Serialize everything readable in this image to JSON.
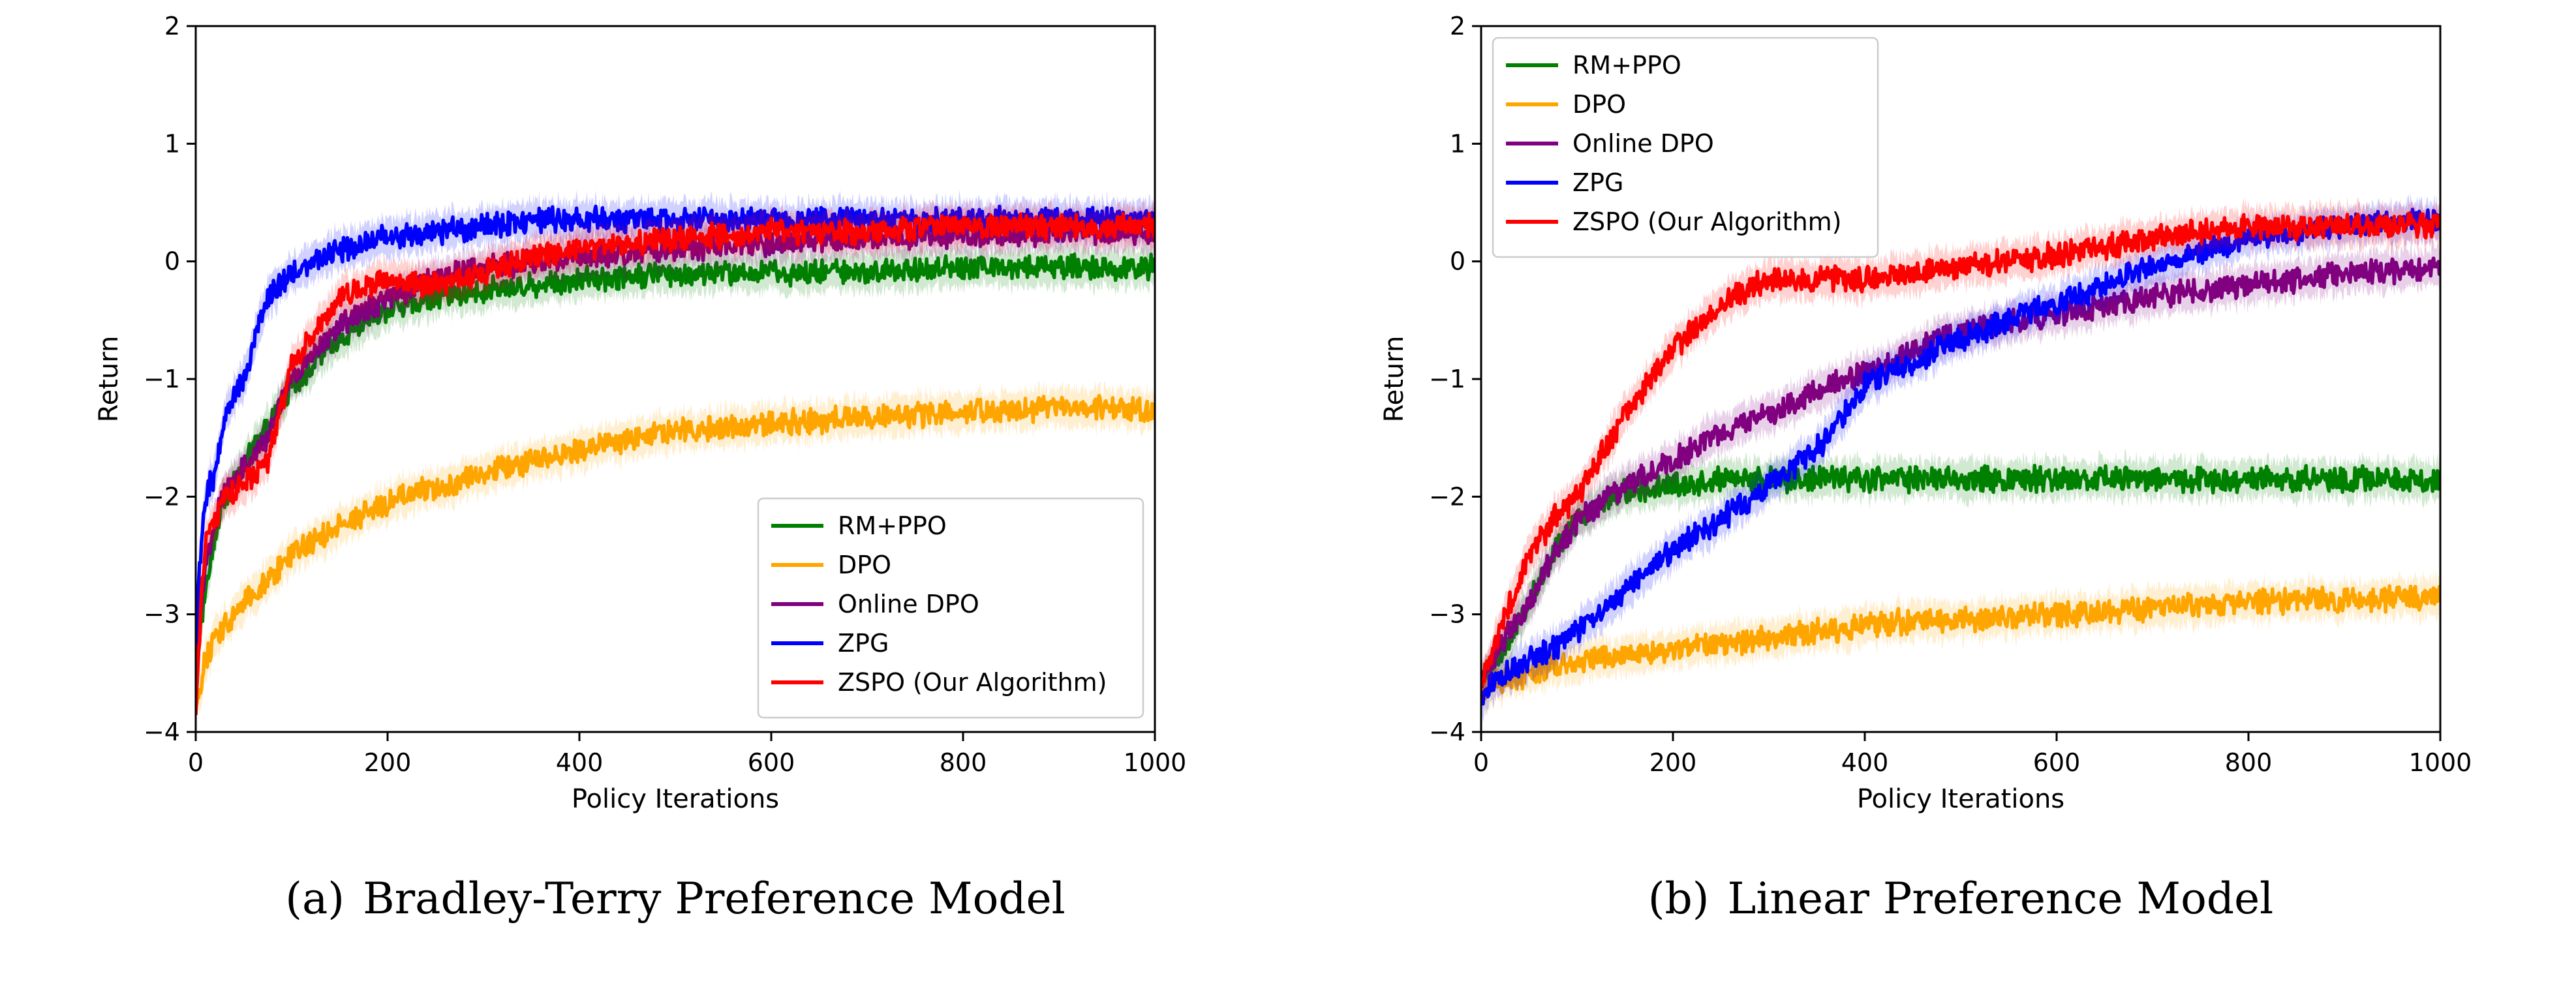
{
  "chart_data": [
    {
      "type": "line",
      "caption_tag": "(a)",
      "caption": "Bradley-Terry Preference Model",
      "xlabel": "Policy Iterations",
      "ylabel": "Return",
      "xlim": [
        0,
        1000
      ],
      "ylim": [
        -4,
        2
      ],
      "xticks": [
        0,
        200,
        400,
        600,
        800,
        1000
      ],
      "yticks": [
        -4,
        -3,
        -2,
        -1,
        0,
        1,
        2
      ],
      "xtick_labels": [
        "0",
        "200",
        "400",
        "600",
        "800",
        "1000"
      ],
      "ytick_labels": [
        "−4",
        "−3",
        "−2",
        "−1",
        "0",
        "1",
        "2"
      ],
      "grid": false,
      "legend_position": "lower-right",
      "x": [
        0,
        5,
        10,
        20,
        30,
        50,
        75,
        100,
        150,
        200,
        250,
        300,
        350,
        400,
        500,
        600,
        700,
        800,
        900,
        1000
      ],
      "series": [
        {
          "name": "RM+PPO",
          "color": "#008000",
          "values": [
            -3.3,
            -3.1,
            -2.8,
            -2.3,
            -2.0,
            -1.75,
            -1.4,
            -1.05,
            -0.65,
            -0.4,
            -0.3,
            -0.25,
            -0.2,
            -0.15,
            -0.1,
            -0.1,
            -0.08,
            -0.05,
            -0.05,
            -0.05
          ]
        },
        {
          "name": "DPO",
          "color": "#FFA500",
          "values": [
            -3.8,
            -3.6,
            -3.4,
            -3.2,
            -3.1,
            -2.9,
            -2.7,
            -2.5,
            -2.25,
            -2.05,
            -1.92,
            -1.8,
            -1.7,
            -1.6,
            -1.45,
            -1.38,
            -1.32,
            -1.28,
            -1.25,
            -1.25
          ]
        },
        {
          "name": "Online DPO",
          "color": "#800080",
          "values": [
            -3.5,
            -3.0,
            -2.6,
            -2.2,
            -1.95,
            -1.75,
            -1.5,
            -1.0,
            -0.55,
            -0.3,
            -0.15,
            -0.05,
            0.0,
            0.05,
            0.1,
            0.15,
            0.2,
            0.22,
            0.25,
            0.25
          ]
        },
        {
          "name": "ZPG",
          "color": "#0000FF",
          "values": [
            -3.3,
            -2.5,
            -2.0,
            -1.8,
            -1.3,
            -1.0,
            -0.3,
            -0.1,
            0.1,
            0.2,
            0.25,
            0.3,
            0.35,
            0.35,
            0.35,
            0.35,
            0.35,
            0.35,
            0.35,
            0.35
          ]
        },
        {
          "name": "ZSPO (Our Algorithm)",
          "color": "#FF0000",
          "values": [
            -3.9,
            -3.0,
            -2.4,
            -2.2,
            -2.0,
            -1.9,
            -1.7,
            -0.9,
            -0.3,
            -0.15,
            -0.2,
            -0.1,
            0.05,
            0.1,
            0.2,
            0.25,
            0.25,
            0.3,
            0.3,
            0.3
          ]
        }
      ]
    },
    {
      "type": "line",
      "caption_tag": "(b)",
      "caption": "Linear Preference Model",
      "xlabel": "Policy Iterations",
      "ylabel": "Return",
      "xlim": [
        0,
        1000
      ],
      "ylim": [
        -4,
        2
      ],
      "xticks": [
        0,
        200,
        400,
        600,
        800,
        1000
      ],
      "yticks": [
        -4,
        -3,
        -2,
        -1,
        0,
        1,
        2
      ],
      "xtick_labels": [
        "0",
        "200",
        "400",
        "600",
        "800",
        "1000"
      ],
      "ytick_labels": [
        "−4",
        "−3",
        "−2",
        "−1",
        "0",
        "1",
        "2"
      ],
      "grid": false,
      "legend_position": "upper-left",
      "x": [
        0,
        10,
        25,
        50,
        75,
        100,
        150,
        200,
        250,
        300,
        350,
        400,
        450,
        500,
        600,
        700,
        800,
        900,
        1000
      ],
      "series": [
        {
          "name": "RM+PPO",
          "color": "#008000",
          "values": [
            -3.6,
            -3.5,
            -3.3,
            -2.9,
            -2.5,
            -2.2,
            -1.95,
            -1.9,
            -1.85,
            -1.85,
            -1.85,
            -1.85,
            -1.85,
            -1.85,
            -1.85,
            -1.85,
            -1.85,
            -1.85,
            -1.85
          ]
        },
        {
          "name": "DPO",
          "color": "#FFA500",
          "values": [
            -3.65,
            -3.6,
            -3.55,
            -3.5,
            -3.45,
            -3.4,
            -3.35,
            -3.3,
            -3.25,
            -3.2,
            -3.15,
            -3.1,
            -3.05,
            -3.05,
            -3.0,
            -2.95,
            -2.9,
            -2.88,
            -2.85
          ]
        },
        {
          "name": "Online DPO",
          "color": "#800080",
          "values": [
            -3.6,
            -3.4,
            -3.2,
            -2.9,
            -2.5,
            -2.2,
            -1.9,
            -1.7,
            -1.45,
            -1.3,
            -1.1,
            -0.95,
            -0.75,
            -0.6,
            -0.45,
            -0.3,
            -0.2,
            -0.1,
            -0.05
          ]
        },
        {
          "name": "ZPG",
          "color": "#0000FF",
          "values": [
            -3.7,
            -3.6,
            -3.5,
            -3.4,
            -3.3,
            -3.15,
            -2.8,
            -2.45,
            -2.2,
            -1.9,
            -1.6,
            -1.05,
            -0.85,
            -0.65,
            -0.35,
            -0.05,
            0.2,
            0.3,
            0.35
          ]
        },
        {
          "name": "ZSPO (Our Algorithm)",
          "color": "#FF0000",
          "values": [
            -3.6,
            -3.4,
            -3.0,
            -2.5,
            -2.2,
            -2.0,
            -1.3,
            -0.75,
            -0.35,
            -0.15,
            -0.15,
            -0.15,
            -0.1,
            -0.05,
            0.05,
            0.2,
            0.3,
            0.3,
            0.3
          ]
        }
      ]
    }
  ]
}
